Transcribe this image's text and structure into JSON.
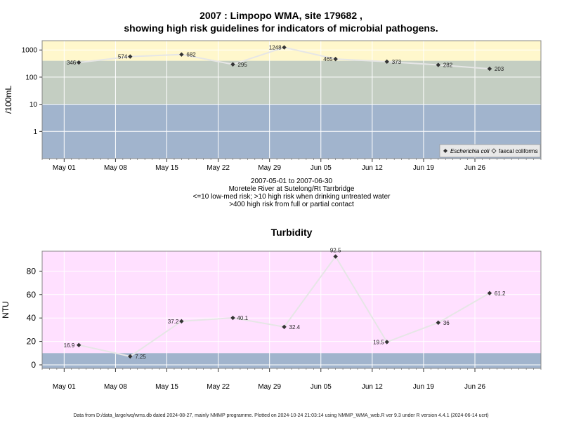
{
  "title": {
    "line1": "2007 : Limpopo WMA, site 179682 ,",
    "line2": "showing high risk guidelines for indicators of microbial pathogens."
  },
  "subtitle_lines": [
    "2007-05-01 to 2007-06-30",
    "Moretele River at Sutelong/Rt Tarrbridge",
    "<=10 low-med risk; >10 high risk when drinking untreated water",
    ">400 high risk from full or partial contact"
  ],
  "footer": "Data from D:/data_large/wq/wms.db dated 2024-08-27, mainly NMMP programme. Plotted on 2024-10-24 21:03:14 using NMMP_WMA_web.R ver 9.3 under R version 4.4.1 (2024-06-14 ucrt)",
  "colors": {
    "band_high": "#fff7cc",
    "band_mid": "#c4cec2",
    "band_low": "#a1b4cd",
    "turbidity_bg": "#ffe0ff",
    "grid": "#ffffff",
    "line": "#e6e6e6",
    "point": "#333333"
  },
  "chart_data": [
    {
      "type": "line",
      "title": "",
      "ylabel": "/100mL",
      "xlabel": "",
      "y_scale": "log",
      "y_ticks": [
        "1",
        "10",
        "100",
        "1000"
      ],
      "x_ticks": [
        "May 01",
        "May 08",
        "May 15",
        "May 22",
        "May 29",
        "Jun 05",
        "Jun 12",
        "Jun 19",
        "Jun 26"
      ],
      "x_tick_dates": [
        "2007-05-01",
        "2007-05-08",
        "2007-05-15",
        "2007-05-22",
        "2007-05-29",
        "2007-06-05",
        "2007-06-12",
        "2007-06-19",
        "2007-06-26"
      ],
      "xlim": [
        "2007-04-28",
        "2007-07-05"
      ],
      "guideline_bands": [
        10,
        400
      ],
      "legend": [
        "Escherichia coli",
        "faecal coliforms"
      ],
      "legend_position": "bottom-right",
      "series": [
        {
          "name": "Escherichia coli",
          "x": [
            "2007-05-03",
            "2007-05-10",
            "2007-05-17",
            "2007-05-24",
            "2007-05-31",
            "2007-06-07",
            "2007-06-14",
            "2007-06-21",
            "2007-06-28"
          ],
          "values": [
            346,
            574,
            682,
            295,
            1248,
            465,
            373,
            282,
            203
          ]
        }
      ]
    },
    {
      "type": "line",
      "title": "Turbidity",
      "ylabel": "NTU",
      "xlabel": "",
      "ylim": [
        -3,
        97
      ],
      "y_ticks": [
        0,
        20,
        40,
        60,
        80
      ],
      "x_ticks": [
        "May 01",
        "May 08",
        "May 15",
        "May 22",
        "May 29",
        "Jun 05",
        "Jun 12",
        "Jun 19",
        "Jun 26"
      ],
      "x_tick_dates": [
        "2007-05-01",
        "2007-05-08",
        "2007-05-15",
        "2007-05-22",
        "2007-05-29",
        "2007-06-05",
        "2007-06-12",
        "2007-06-19",
        "2007-06-26"
      ],
      "xlim": [
        "2007-04-28",
        "2007-07-05"
      ],
      "guideline_bands": [
        10
      ],
      "series": [
        {
          "x": [
            "2007-05-03",
            "2007-05-10",
            "2007-05-17",
            "2007-05-24",
            "2007-05-31",
            "2007-06-07",
            "2007-06-14",
            "2007-06-21",
            "2007-06-28"
          ],
          "values": [
            16.9,
            7.25,
            37.2,
            40.1,
            32.4,
            92.5,
            19.5,
            36,
            61.2
          ]
        }
      ]
    }
  ]
}
